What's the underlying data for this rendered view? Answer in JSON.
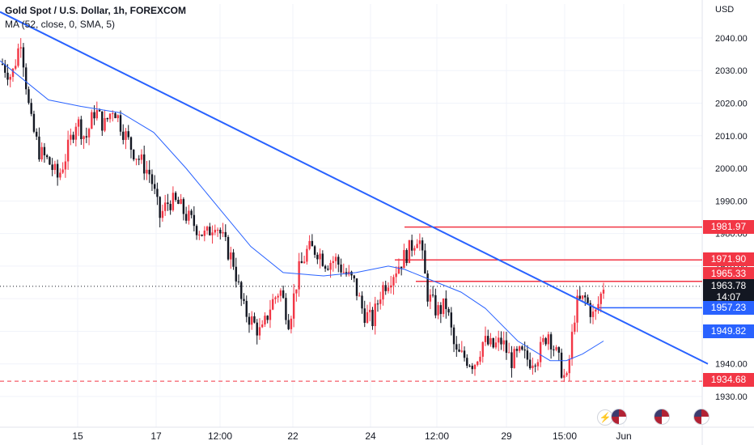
{
  "header": {
    "title": "Gold Spot / U.S. Dollar, 1h, FOREXCOM",
    "indicator": "MA (52, close, 0, SMA, 5)"
  },
  "axis": {
    "currency_label": "USD"
  },
  "badges": {
    "level_1981": "1981.97",
    "level_1971": "1971.90",
    "level_1965": "1965.33",
    "current_price": "1963.78",
    "countdown": "14:07",
    "level_1957": "1957.23",
    "ma_value": "1949.82",
    "level_1934": "1934.68"
  },
  "icons": [
    "lightning-icon",
    "us-flag-icon",
    "us-flag-icon",
    "us-flag-icon"
  ],
  "colors": {
    "up": "#f23645",
    "down": "#131722",
    "trendline": "#2962ff",
    "ma": "#2962ff",
    "resistance": "#f23645",
    "support": "#2962ff"
  },
  "chart_data": {
    "type": "candlestick",
    "title": "Gold Spot / U.S. Dollar, 1h, FOREXCOM",
    "ylabel": "USD",
    "ylim": [
      1927,
      2053
    ],
    "y_ticks": [
      1930,
      1940,
      1950,
      1960,
      1970,
      1980,
      1990,
      2000,
      2010,
      2020,
      2030,
      2040
    ],
    "x_ticks": [
      "15",
      "17",
      "12:00",
      "22",
      "24",
      "12:00",
      "29",
      "15:00",
      "Jun"
    ],
    "grid": true,
    "price_series": [
      2032,
      2028,
      2040,
      2015,
      2005,
      2002,
      1997,
      2005,
      2015,
      2009,
      2018,
      2013,
      2019,
      2012,
      2006,
      2002,
      1998,
      1985,
      1990,
      1989,
      1985,
      1982,
      1979,
      1984,
      1977,
      1971,
      1957,
      1953,
      1949,
      1958,
      1963,
      1953,
      1968,
      1975,
      1975,
      1971,
      1972,
      1968,
      1965,
      1956,
      1953,
      1963,
      1967,
      1971,
      1975,
      1980,
      1961,
      1956,
      1958,
      1943,
      1942,
      1940,
      1947,
      1945,
      1947,
      1941,
      1943,
      1941,
      1943,
      1950,
      1942,
      1934,
      1958,
      1960,
      1954,
      1964
    ],
    "moving_average": {
      "name": "MA (52, close, 0, SMA, 5)",
      "points": [
        [
          0,
          2033
        ],
        [
          20,
          2029
        ],
        [
          60,
          2021
        ],
        [
          100,
          2019
        ],
        [
          150,
          2017
        ],
        [
          190,
          2011
        ],
        [
          230,
          2000
        ],
        [
          270,
          1988
        ],
        [
          310,
          1976
        ],
        [
          350,
          1968
        ],
        [
          400,
          1967
        ],
        [
          440,
          1968
        ],
        [
          480,
          1970
        ],
        [
          500,
          1969
        ],
        [
          530,
          1966
        ],
        [
          570,
          1962
        ],
        [
          600,
          1957
        ],
        [
          640,
          1947
        ],
        [
          680,
          1941
        ],
        [
          700,
          1941
        ],
        [
          720,
          1943
        ],
        [
          746,
          1947
        ]
      ]
    },
    "trendline": {
      "points": [
        [
          0,
          2048
        ],
        [
          875,
          1940
        ]
      ]
    },
    "horizontal_levels": [
      {
        "value": 1981.97,
        "label": "1981.97",
        "kind": "resistance"
      },
      {
        "value": 1971.9,
        "label": "1971.90",
        "kind": "resistance"
      },
      {
        "value": 1965.33,
        "label": "1965.33",
        "kind": "resistance"
      },
      {
        "value": 1957.23,
        "label": "1957.23",
        "kind": "support"
      },
      {
        "value": 1934.68,
        "label": "1934.68",
        "kind": "support",
        "dashed": true
      }
    ],
    "current_price": 1963.78,
    "ma_last": 1949.82
  }
}
